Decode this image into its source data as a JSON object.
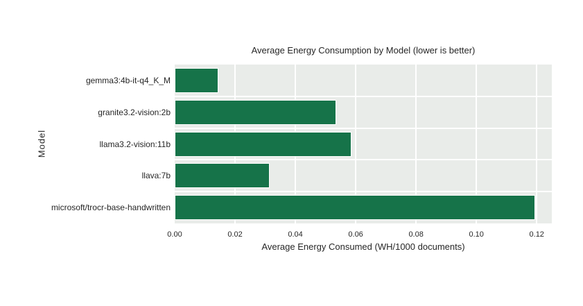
{
  "chart_data": {
    "type": "bar",
    "orientation": "horizontal",
    "title": "Average Energy Consumption by Model (lower is better)",
    "xlabel": "Average Energy Consumed (WH/1000 documents)",
    "ylabel": "Model",
    "categories": [
      "gemma3:4b-it-q4_K_M",
      "granite3.2-vision:2b",
      "llama3.2-vision:11b",
      "llava:7b",
      "microsoft/trocr-base-handwritten"
    ],
    "values": [
      0.0145,
      0.0535,
      0.0585,
      0.0315,
      0.1195
    ],
    "xlim": [
      0,
      0.125
    ],
    "xticks": [
      "0.00",
      "0.02",
      "0.04",
      "0.06",
      "0.08",
      "0.10",
      "0.12"
    ],
    "xtick_values": [
      0.0,
      0.02,
      0.04,
      0.06,
      0.08,
      0.1,
      0.12
    ],
    "grid": true,
    "legend": false,
    "colors": {
      "bar": "#167349",
      "plot_bg": "#e9ece9",
      "grid": "#ffffff",
      "text": "#262626",
      "figure_bg": "#ffffff"
    }
  }
}
